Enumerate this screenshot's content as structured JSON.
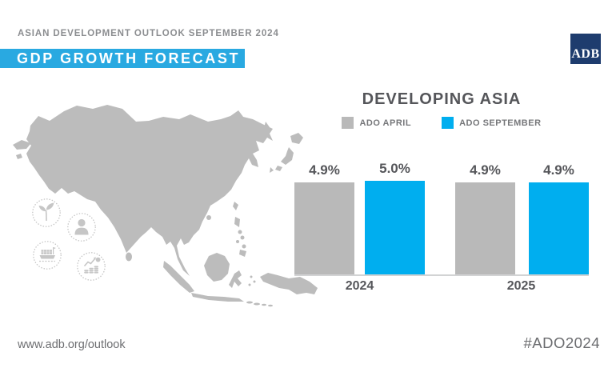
{
  "header": {
    "kicker": "ASIAN DEVELOPMENT OUTLOOK SEPTEMBER 2024",
    "title": "GDP GROWTH FORECAST"
  },
  "logo": {
    "text": "ADB"
  },
  "colors": {
    "banner_blue": "#29a9e1",
    "bar_blue": "#00aeef",
    "bar_gray": "#b9b9b9",
    "map_gray": "#bcbcbc",
    "icon_gray": "#c6c6c6",
    "logo_navy": "#1e3c6e",
    "text_dark": "#55565a",
    "text_gray": "#6d6e71"
  },
  "icons": [
    {
      "name": "sprout-icon"
    },
    {
      "name": "person-icon"
    },
    {
      "name": "cargo-ship-icon"
    },
    {
      "name": "growth-chart-icon"
    }
  ],
  "chart_data": {
    "type": "bar",
    "title": "DEVELOPING ASIA",
    "categories": [
      "2024",
      "2025"
    ],
    "series": [
      {
        "name": "ADO APRIL",
        "color": "#b9b9b9",
        "values": [
          4.9,
          4.9
        ],
        "labels": [
          "4.9%",
          "4.9%"
        ]
      },
      {
        "name": "ADO SEPTEMBER",
        "color": "#00aeef",
        "values": [
          5.0,
          4.9
        ],
        "labels": [
          "5.0%",
          "4.9%"
        ]
      }
    ],
    "unit": "%",
    "ylim": [
      0,
      5.2
    ],
    "legend_position": "top",
    "grid": false,
    "value_labels_shown": true
  },
  "footer": {
    "website": "www.adb.org/outlook",
    "hashtag": "#ADO2024"
  }
}
